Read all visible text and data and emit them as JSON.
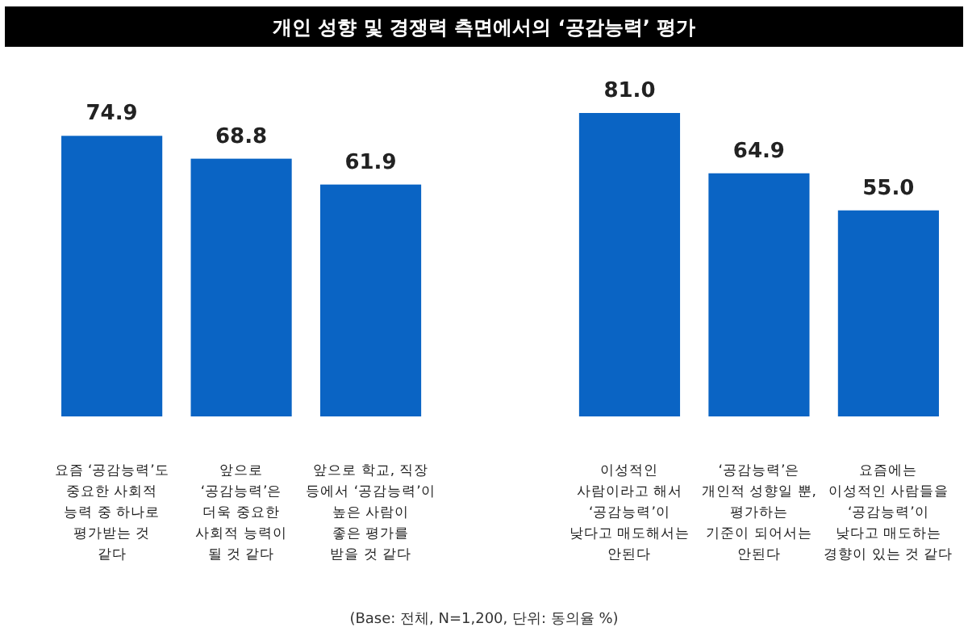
{
  "chart_data": {
    "type": "bar",
    "title": "개인 성향 및 경쟁력 측면에서의 ‘공감능력’ 평가",
    "categories": [
      "요즘 ‘공감능력’도\n중요한 사회적\n능력 중 하나로\n평가받는 것\n같다",
      "앞으로\n‘공감능력’은\n더욱 중요한\n사회적 능력이\n될 것 같다",
      "앞으로 학교, 직장\n등에서 ‘공감능력’이\n높은 사람이\n좋은 평가를\n받을 것 같다",
      null,
      "이성적인\n사람이라고 해서\n‘공감능력’이\n낮다고 매도해서는\n안된다",
      "‘공감능력’은\n개인적 성향일 뿐,\n평가하는\n기준이 되어서는\n안된다",
      "요즘에는\n이성적인 사람들을\n‘공감능력’이\n낮다고 매도하는\n경향이 있는 것 같다"
    ],
    "values": [
      74.9,
      68.8,
      61.9,
      null,
      81.0,
      64.9,
      55.0
    ],
    "color": "#0a64c4",
    "value_labels": [
      "74.9",
      "68.8",
      "61.9",
      null,
      "81.0",
      "64.9",
      "55.0"
    ],
    "annotations": [
      "(Base: 전체, N=1,200, 단위: 동의율 %)"
    ]
  }
}
